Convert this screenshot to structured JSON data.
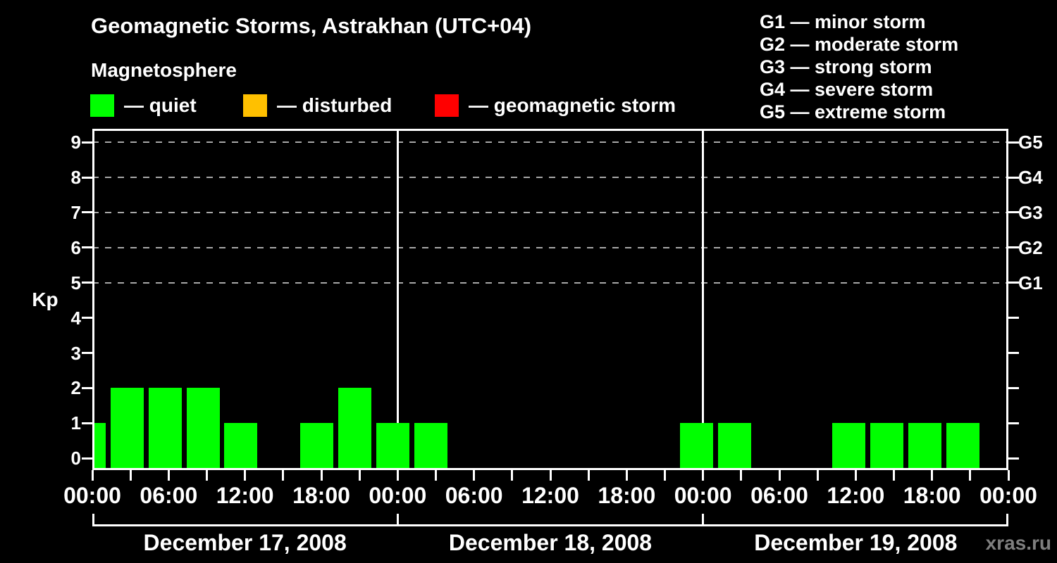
{
  "title": "Geomagnetic Storms, Astrakhan (UTC+04)",
  "subtitle": "Magnetosphere",
  "kp_axis_label": "Kp",
  "watermark": "xras.ru",
  "legend": {
    "items": [
      {
        "key": "quiet",
        "label": "— quiet",
        "color": "#00ff00"
      },
      {
        "key": "disturbed",
        "label": "— disturbed",
        "color": "#ffc000"
      },
      {
        "key": "storm",
        "label": "— geomagnetic storm",
        "color": "#ff0000"
      }
    ]
  },
  "storm_scale_legend": [
    "G1 — minor storm",
    "G2 — moderate storm",
    "G3 — strong storm",
    "G4 — severe storm",
    "G5 — extreme storm"
  ],
  "chart_data": {
    "type": "bar",
    "title": "Geomagnetic Storms, Astrakhan (UTC+04)",
    "subtitle": "Magnetosphere",
    "ylabel": "Kp",
    "ylim": [
      0,
      9
    ],
    "yticks": [
      0,
      1,
      2,
      3,
      4,
      5,
      6,
      7,
      8,
      9
    ],
    "gridlines_at_kp": [
      5,
      6,
      7,
      8,
      9
    ],
    "grid": "dashed horizontal at Kp 5-9 only",
    "right_axis_labels": [
      {
        "kp": 5,
        "label": "G1"
      },
      {
        "kp": 6,
        "label": "G2"
      },
      {
        "kp": 7,
        "label": "G3"
      },
      {
        "kp": 8,
        "label": "G4"
      },
      {
        "kp": 9,
        "label": "G5"
      }
    ],
    "x_time_labels": [
      "00:00",
      "06:00",
      "12:00",
      "18:00",
      "00:00",
      "06:00",
      "12:00",
      "18:00",
      "00:00",
      "06:00",
      "12:00",
      "18:00",
      "00:00"
    ],
    "x_label_interval_hours": 6,
    "x_minor_tick_hours": 3,
    "total_hours": 72,
    "days": [
      "December 17, 2008",
      "December 18, 2008",
      "December 19, 2008"
    ],
    "bar_slot_hours": 3,
    "bars": [
      {
        "slot": -1,
        "kp": 1,
        "category": "quiet",
        "clipped_at_left_edge": true
      },
      {
        "slot": 0,
        "kp": 2,
        "category": "quiet"
      },
      {
        "slot": 1,
        "kp": 2,
        "category": "quiet"
      },
      {
        "slot": 2,
        "kp": 2,
        "category": "quiet"
      },
      {
        "slot": 3,
        "kp": 1,
        "category": "quiet"
      },
      {
        "slot": 5,
        "kp": 1,
        "category": "quiet"
      },
      {
        "slot": 6,
        "kp": 2,
        "category": "quiet"
      },
      {
        "slot": 7,
        "kp": 1,
        "category": "quiet"
      },
      {
        "slot": 8,
        "kp": 1,
        "category": "quiet"
      },
      {
        "slot": 15,
        "kp": 1,
        "category": "quiet"
      },
      {
        "slot": 16,
        "kp": 1,
        "category": "quiet"
      },
      {
        "slot": 19,
        "kp": 1,
        "category": "quiet"
      },
      {
        "slot": 20,
        "kp": 1,
        "category": "quiet"
      },
      {
        "slot": 21,
        "kp": 1,
        "category": "quiet"
      },
      {
        "slot": 22,
        "kp": 1,
        "category": "quiet"
      }
    ],
    "colors": {
      "quiet": "#00ff00",
      "disturbed": "#ffc000",
      "storm": "#ff0000",
      "grid": "#a8a8a8",
      "axis": "#ffffff",
      "background": "#000000",
      "watermark": "#7f7f7f"
    }
  }
}
